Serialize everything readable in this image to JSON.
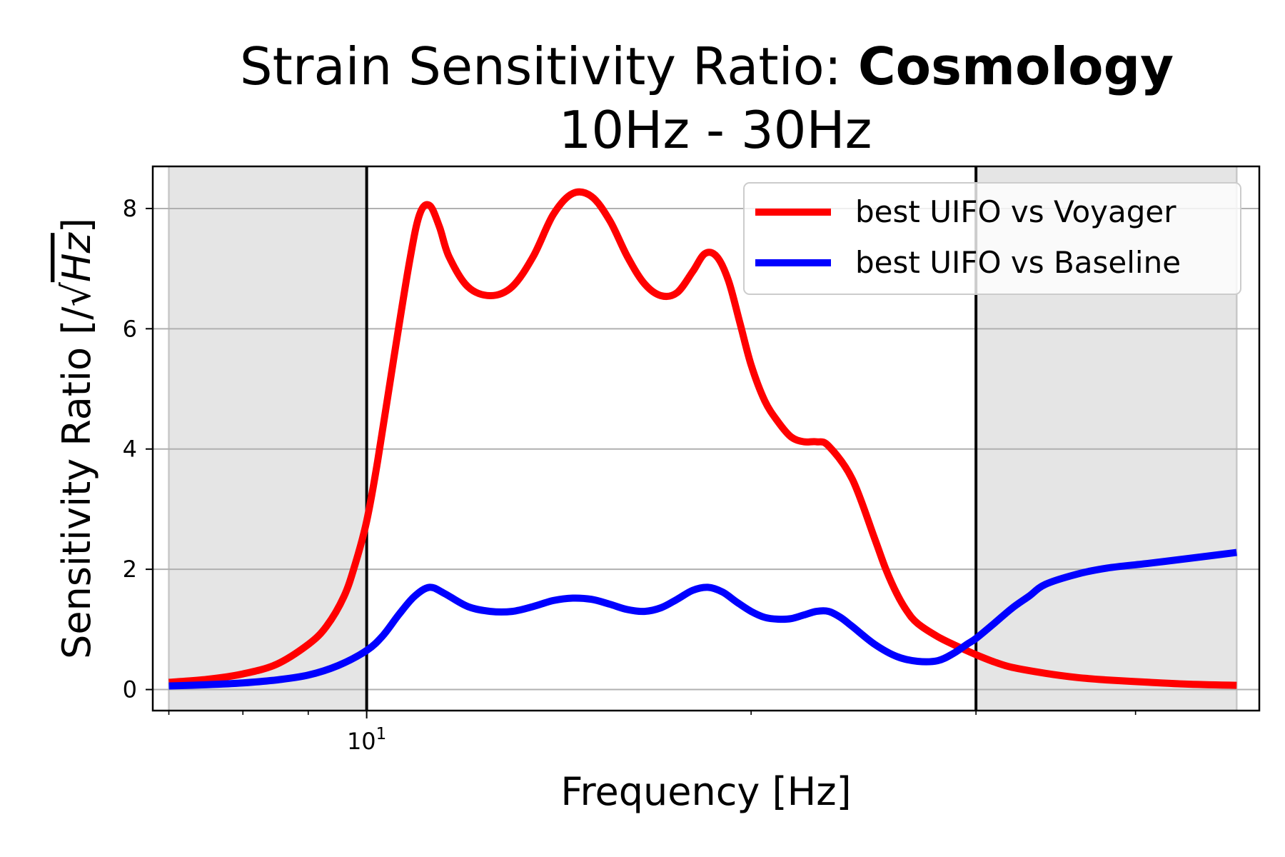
{
  "chart_data": {
    "type": "line",
    "title_prefix": "Strain Sensitivity Ratio: ",
    "title_bold": "Cosmology",
    "subtitle": "10Hz - 30Hz",
    "xlabel": "Frequency [Hz]",
    "ylabel_prefix": "Sensitivity Ratio [/",
    "ylabel_sqrt_symbol": "√",
    "ylabel_unit": "Hz",
    "ylabel_suffix": "]",
    "xscale": "log",
    "xlim": [
      6.8,
      50
    ],
    "ylim": [
      -0.35,
      8.7
    ],
    "x_tick_base": "10",
    "x_tick_exp": "1",
    "yticks": [
      "0",
      "2",
      "4",
      "6",
      "8"
    ],
    "ytick_values": [
      0,
      2,
      4,
      6,
      8
    ],
    "grid": "horizontal",
    "legend_position": "top-right",
    "shaded_regions": [
      [
        7.0,
        10.0
      ],
      [
        30.0,
        48.0
      ]
    ],
    "band_lines": [
      10,
      30
    ],
    "series": [
      {
        "name": "best UIFO vs Voyager",
        "color": "#ff0000",
        "x": [
          7.0,
          7.5,
          8.0,
          8.5,
          9.0,
          9.3,
          9.6,
          9.8,
          10.0,
          10.2,
          10.5,
          10.8,
          11.0,
          11.2,
          11.4,
          11.6,
          12.0,
          12.5,
          13.0,
          13.5,
          14.0,
          14.5,
          15.0,
          15.5,
          16.0,
          16.5,
          17.0,
          17.5,
          18.0,
          18.4,
          18.8,
          19.2,
          19.6,
          20.0,
          20.5,
          21.0,
          21.5,
          22.0,
          22.5,
          23.0,
          24.0,
          25.0,
          25.5,
          26.0,
          26.5,
          27.0,
          28.0,
          29.0,
          30.0,
          31.0,
          32.0,
          34.0,
          36.0,
          38.0,
          41.0,
          44.0,
          48.0
        ],
        "y": [
          0.12,
          0.17,
          0.26,
          0.42,
          0.75,
          1.05,
          1.55,
          2.1,
          2.8,
          3.8,
          5.5,
          7.1,
          7.9,
          8.05,
          7.7,
          7.2,
          6.7,
          6.55,
          6.7,
          7.2,
          7.9,
          8.25,
          8.2,
          7.8,
          7.2,
          6.75,
          6.55,
          6.6,
          6.95,
          7.25,
          7.2,
          6.8,
          6.1,
          5.4,
          4.8,
          4.45,
          4.2,
          4.12,
          4.12,
          4.05,
          3.5,
          2.5,
          2.0,
          1.6,
          1.3,
          1.1,
          0.88,
          0.72,
          0.58,
          0.46,
          0.37,
          0.27,
          0.2,
          0.16,
          0.12,
          0.09,
          0.07
        ]
      },
      {
        "name": "best UIFO vs Baseline",
        "color": "#0000ff",
        "x": [
          7.0,
          7.5,
          8.0,
          8.5,
          9.0,
          9.5,
          10.0,
          10.3,
          10.6,
          10.9,
          11.2,
          11.5,
          12.0,
          12.5,
          13.0,
          13.5,
          14.0,
          14.5,
          15.0,
          15.5,
          16.0,
          16.5,
          17.0,
          17.5,
          18.0,
          18.5,
          19.0,
          19.5,
          20.0,
          20.5,
          21.0,
          21.5,
          22.0,
          22.5,
          23.0,
          23.5,
          24.0,
          25.0,
          26.0,
          27.0,
          28.0,
          28.8,
          29.5,
          30.0,
          31.0,
          32.0,
          33.0,
          34.0,
          36.0,
          38.0,
          41.0,
          44.0,
          48.0
        ],
        "y": [
          0.06,
          0.08,
          0.11,
          0.16,
          0.24,
          0.4,
          0.65,
          0.9,
          1.25,
          1.55,
          1.7,
          1.6,
          1.38,
          1.3,
          1.3,
          1.38,
          1.48,
          1.52,
          1.5,
          1.42,
          1.33,
          1.3,
          1.36,
          1.5,
          1.65,
          1.7,
          1.62,
          1.45,
          1.3,
          1.2,
          1.17,
          1.18,
          1.24,
          1.3,
          1.3,
          1.2,
          1.05,
          0.75,
          0.55,
          0.47,
          0.48,
          0.6,
          0.75,
          0.85,
          1.1,
          1.35,
          1.55,
          1.75,
          1.92,
          2.02,
          2.1,
          2.18,
          2.28
        ]
      }
    ]
  }
}
